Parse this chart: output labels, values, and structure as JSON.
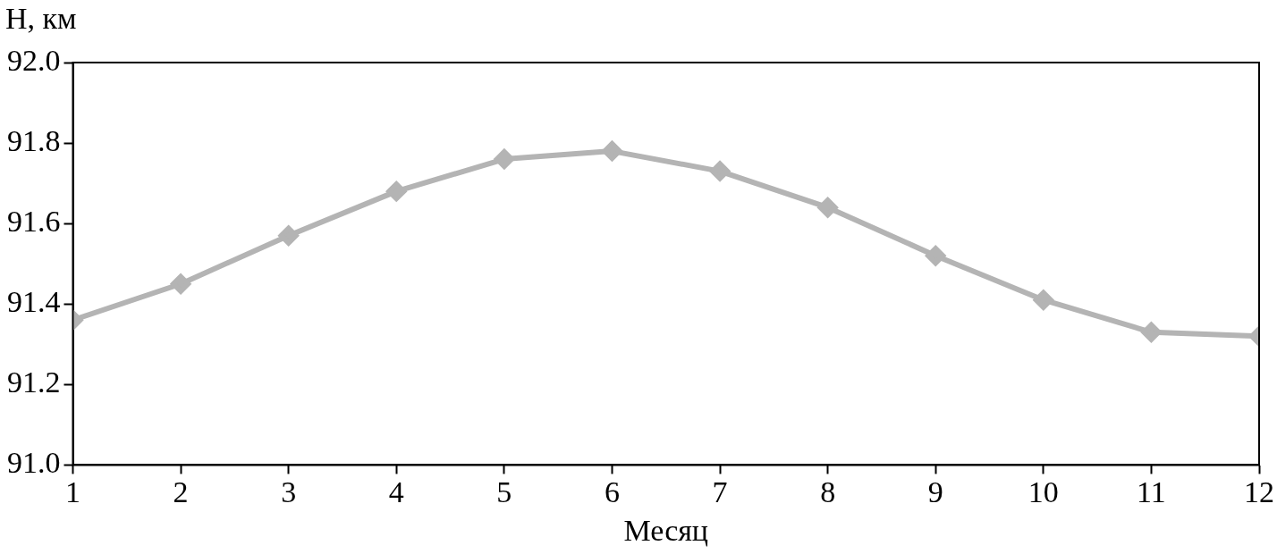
{
  "chart_data": {
    "type": "line",
    "xlabel": "Месяц",
    "ylabel": "H, км",
    "x": [
      1,
      2,
      3,
      4,
      5,
      6,
      7,
      8,
      9,
      10,
      11,
      12
    ],
    "series": [
      {
        "color": "#b4b4b4",
        "values": [
          91.36,
          91.45,
          91.57,
          91.68,
          91.76,
          91.78,
          91.73,
          91.64,
          91.52,
          91.41,
          91.33,
          91.32
        ]
      }
    ],
    "xlim": [
      1,
      12
    ],
    "xticks": [
      1,
      2,
      3,
      4,
      5,
      6,
      7,
      8,
      9,
      10,
      11,
      12
    ],
    "ylim": [
      91.0,
      92.0
    ],
    "yticks": [
      {
        "value": 91.0,
        "label": "91.0"
      },
      {
        "value": 91.2,
        "label": "91.2"
      },
      {
        "value": 91.4,
        "label": "91.4"
      },
      {
        "value": 91.6,
        "label": "91.6"
      },
      {
        "value": 91.8,
        "label": "91.8"
      },
      {
        "value": 92.0,
        "label": "92.0"
      }
    ],
    "grid": false,
    "legend": false,
    "marker": "diamond",
    "line_style": "solid"
  }
}
